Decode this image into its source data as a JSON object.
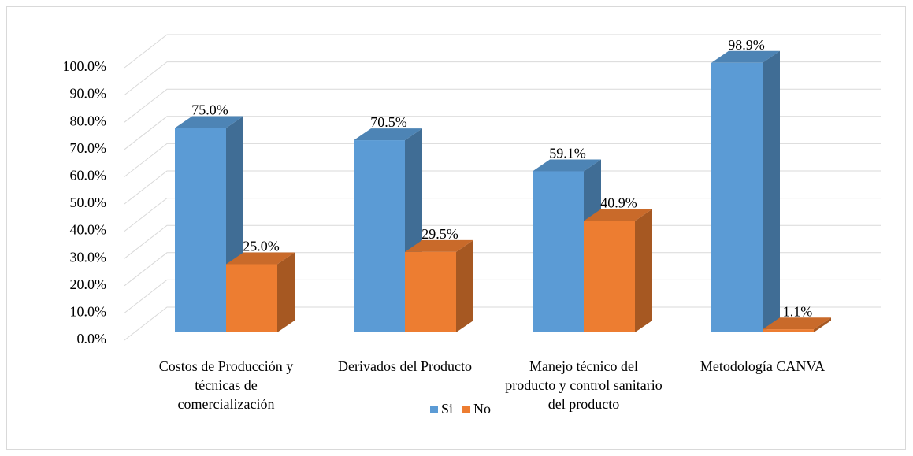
{
  "chart_data": {
    "type": "bar3d",
    "categories": [
      "Costos de Producción y técnicas de comercialización",
      "Derivados del Producto",
      "Manejo técnico del producto y control sanitario del producto",
      "Metodología CANVA"
    ],
    "series": [
      {
        "name": "Si",
        "color": "#5b9bd5",
        "values": [
          75.0,
          70.5,
          59.1,
          98.9
        ],
        "value_labels": [
          "75.0%",
          "70.5%",
          "59.1%",
          "98.9%"
        ]
      },
      {
        "name": "No",
        "color": "#ed7d31",
        "values": [
          25.0,
          29.5,
          40.9,
          1.1
        ],
        "value_labels": [
          "25.0%",
          "29.5%",
          "40.9%",
          "1.1%"
        ]
      }
    ],
    "ylim": [
      0,
      100
    ],
    "yticks": [
      {
        "value": 0,
        "label": "0.0%"
      },
      {
        "value": 10,
        "label": "10.0%"
      },
      {
        "value": 20,
        "label": "20.0%"
      },
      {
        "value": 30,
        "label": "30.0%"
      },
      {
        "value": 40,
        "label": "40.0%"
      },
      {
        "value": 50,
        "label": "50.0%"
      },
      {
        "value": 60,
        "label": "60.0%"
      },
      {
        "value": 70,
        "label": "70.0%"
      },
      {
        "value": 80,
        "label": "80.0%"
      },
      {
        "value": 90,
        "label": "90.0%"
      },
      {
        "value": 100,
        "label": "100.0%"
      }
    ],
    "grid": true,
    "legend": "bottom"
  }
}
